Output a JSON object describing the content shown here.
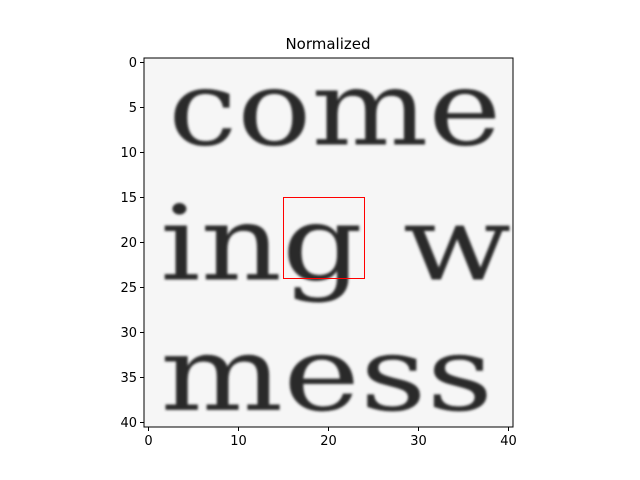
{
  "chart_data": {
    "type": "heatmap",
    "title": "Normalized",
    "xlabel": "",
    "ylabel": "",
    "xlim": [
      -0.5,
      40.5
    ],
    "ylim": [
      40.5,
      -0.5
    ],
    "x_ticks": [
      0,
      10,
      20,
      30,
      40
    ],
    "y_ticks": [
      0,
      5,
      10,
      15,
      20,
      25,
      30,
      35,
      40
    ],
    "colormap": "gray",
    "grid": false,
    "image_text": [
      "come",
      "ing w",
      "mess"
    ],
    "highlight_box": {
      "x": [
        15,
        24
      ],
      "y": [
        15,
        24
      ],
      "color": "#ff0000"
    }
  }
}
